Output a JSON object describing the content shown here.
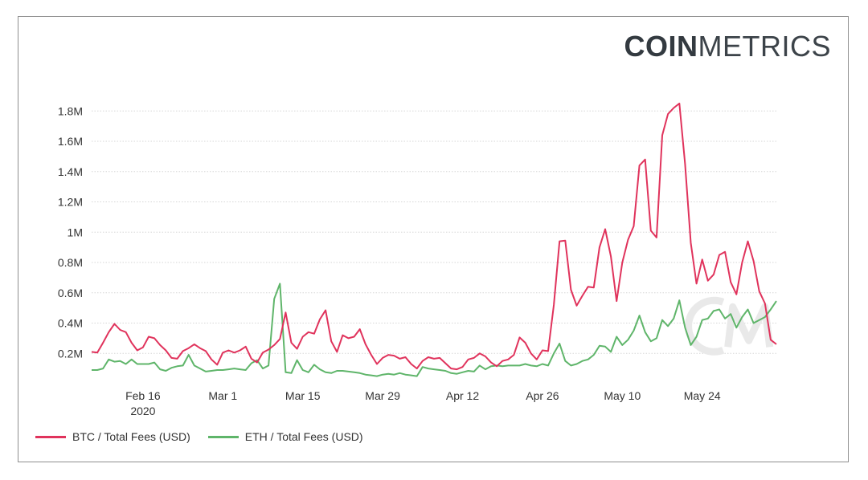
{
  "brand": {
    "bold": "COIN",
    "thin": "METRICS"
  },
  "colors": {
    "btc": "#e0335c",
    "eth": "#5fb56a",
    "grid": "#d6d6d6",
    "watermark": "#e9e9e9"
  },
  "chart_data": {
    "type": "line",
    "title": "",
    "xlabel": "",
    "ylabel": "",
    "ylim": [
      0,
      1950000
    ],
    "grid": true,
    "legend_position": "bottom-left",
    "yticks": [
      {
        "value": 200000,
        "label": "0.2M"
      },
      {
        "value": 400000,
        "label": "0.4M"
      },
      {
        "value": 600000,
        "label": "0.6M"
      },
      {
        "value": 800000,
        "label": "0.8M"
      },
      {
        "value": 1000000,
        "label": "1M"
      },
      {
        "value": 1200000,
        "label": "1.2M"
      },
      {
        "value": 1400000,
        "label": "1.4M"
      },
      {
        "value": 1600000,
        "label": "1.6M"
      },
      {
        "value": 1800000,
        "label": "1.8M"
      }
    ],
    "xticks": [
      {
        "date": "2020-02-16",
        "label": "Feb 16",
        "sublabel": "2020"
      },
      {
        "date": "2020-03-01",
        "label": "Mar 1",
        "sublabel": ""
      },
      {
        "date": "2020-03-15",
        "label": "Mar 15",
        "sublabel": ""
      },
      {
        "date": "2020-03-29",
        "label": "Mar 29",
        "sublabel": ""
      },
      {
        "date": "2020-04-12",
        "label": "Apr 12",
        "sublabel": ""
      },
      {
        "date": "2020-04-26",
        "label": "Apr 26",
        "sublabel": ""
      },
      {
        "date": "2020-05-10",
        "label": "May 10",
        "sublabel": ""
      },
      {
        "date": "2020-05-24",
        "label": "May 24",
        "sublabel": ""
      }
    ],
    "x": [
      "2020-02-07",
      "2020-02-08",
      "2020-02-09",
      "2020-02-10",
      "2020-02-11",
      "2020-02-12",
      "2020-02-13",
      "2020-02-14",
      "2020-02-15",
      "2020-02-16",
      "2020-02-17",
      "2020-02-18",
      "2020-02-19",
      "2020-02-20",
      "2020-02-21",
      "2020-02-22",
      "2020-02-23",
      "2020-02-24",
      "2020-02-25",
      "2020-02-26",
      "2020-02-27",
      "2020-02-28",
      "2020-02-29",
      "2020-03-01",
      "2020-03-02",
      "2020-03-03",
      "2020-03-04",
      "2020-03-05",
      "2020-03-06",
      "2020-03-07",
      "2020-03-08",
      "2020-03-09",
      "2020-03-10",
      "2020-03-11",
      "2020-03-12",
      "2020-03-13",
      "2020-03-14",
      "2020-03-15",
      "2020-03-16",
      "2020-03-17",
      "2020-03-18",
      "2020-03-19",
      "2020-03-20",
      "2020-03-21",
      "2020-03-22",
      "2020-03-23",
      "2020-03-24",
      "2020-03-25",
      "2020-03-26",
      "2020-03-27",
      "2020-03-28",
      "2020-03-29",
      "2020-03-30",
      "2020-03-31",
      "2020-04-01",
      "2020-04-02",
      "2020-04-03",
      "2020-04-04",
      "2020-04-05",
      "2020-04-06",
      "2020-04-07",
      "2020-04-08",
      "2020-04-09",
      "2020-04-10",
      "2020-04-11",
      "2020-04-12",
      "2020-04-13",
      "2020-04-14",
      "2020-04-15",
      "2020-04-16",
      "2020-04-17",
      "2020-04-18",
      "2020-04-19",
      "2020-04-20",
      "2020-04-21",
      "2020-04-22",
      "2020-04-23",
      "2020-04-24",
      "2020-04-25",
      "2020-04-26",
      "2020-04-27",
      "2020-04-28",
      "2020-04-29",
      "2020-04-30",
      "2020-05-01",
      "2020-05-02",
      "2020-05-03",
      "2020-05-04",
      "2020-05-05",
      "2020-05-06",
      "2020-05-07",
      "2020-05-08",
      "2020-05-09",
      "2020-05-10",
      "2020-05-11",
      "2020-05-12",
      "2020-05-13",
      "2020-05-14",
      "2020-05-15",
      "2020-05-16",
      "2020-05-17",
      "2020-05-18",
      "2020-05-19",
      "2020-05-20",
      "2020-05-21",
      "2020-05-22",
      "2020-05-23",
      "2020-05-24",
      "2020-05-25",
      "2020-05-26",
      "2020-05-27",
      "2020-05-28",
      "2020-05-29",
      "2020-05-30",
      "2020-05-31",
      "2020-06-01",
      "2020-06-02",
      "2020-06-03",
      "2020-06-04",
      "2020-06-05",
      "2020-06-06"
    ],
    "series": [
      {
        "name": "BTC / Total Fees (USD)",
        "color": "#e0335c",
        "values": [
          210000,
          205000,
          270000,
          340000,
          395000,
          355000,
          340000,
          270000,
          220000,
          240000,
          310000,
          300000,
          255000,
          220000,
          170000,
          165000,
          215000,
          235000,
          260000,
          235000,
          215000,
          160000,
          125000,
          205000,
          220000,
          205000,
          220000,
          245000,
          165000,
          140000,
          205000,
          225000,
          255000,
          295000,
          470000,
          270000,
          230000,
          310000,
          340000,
          330000,
          425000,
          485000,
          280000,
          210000,
          320000,
          300000,
          310000,
          360000,
          260000,
          190000,
          130000,
          170000,
          190000,
          185000,
          165000,
          175000,
          130000,
          100000,
          150000,
          175000,
          165000,
          170000,
          135000,
          100000,
          95000,
          110000,
          160000,
          170000,
          200000,
          180000,
          140000,
          115000,
          150000,
          160000,
          190000,
          305000,
          270000,
          200000,
          160000,
          220000,
          215000,
          520000,
          940000,
          945000,
          620000,
          515000,
          580000,
          640000,
          635000,
          900000,
          1020000,
          840000,
          545000,
          800000,
          950000,
          1040000,
          1440000,
          1480000,
          1010000,
          965000,
          1640000,
          1780000,
          1820000,
          1850000,
          1450000,
          930000,
          660000,
          820000,
          680000,
          720000,
          850000,
          870000,
          670000,
          590000,
          800000,
          940000,
          810000,
          610000,
          530000,
          290000,
          260000
        ]
      },
      {
        "name": "ETH / Total Fees (USD)",
        "color": "#5fb56a",
        "values": [
          90000,
          90000,
          100000,
          160000,
          145000,
          150000,
          130000,
          160000,
          130000,
          130000,
          130000,
          140000,
          95000,
          85000,
          105000,
          115000,
          120000,
          190000,
          120000,
          100000,
          80000,
          85000,
          90000,
          90000,
          95000,
          100000,
          95000,
          90000,
          135000,
          155000,
          100000,
          120000,
          560000,
          660000,
          75000,
          70000,
          155000,
          90000,
          75000,
          125000,
          95000,
          75000,
          70000,
          85000,
          85000,
          80000,
          75000,
          70000,
          60000,
          55000,
          50000,
          60000,
          65000,
          60000,
          70000,
          60000,
          55000,
          50000,
          110000,
          100000,
          95000,
          90000,
          85000,
          70000,
          65000,
          75000,
          85000,
          80000,
          120000,
          95000,
          115000,
          120000,
          115000,
          120000,
          120000,
          120000,
          130000,
          120000,
          115000,
          130000,
          120000,
          200000,
          265000,
          150000,
          120000,
          130000,
          150000,
          160000,
          190000,
          250000,
          245000,
          210000,
          310000,
          255000,
          290000,
          350000,
          450000,
          340000,
          280000,
          300000,
          420000,
          380000,
          430000,
          550000,
          370000,
          255000,
          310000,
          420000,
          430000,
          480000,
          490000,
          430000,
          460000,
          370000,
          440000,
          490000,
          400000,
          420000,
          440000,
          490000,
          545000
        ]
      }
    ]
  }
}
